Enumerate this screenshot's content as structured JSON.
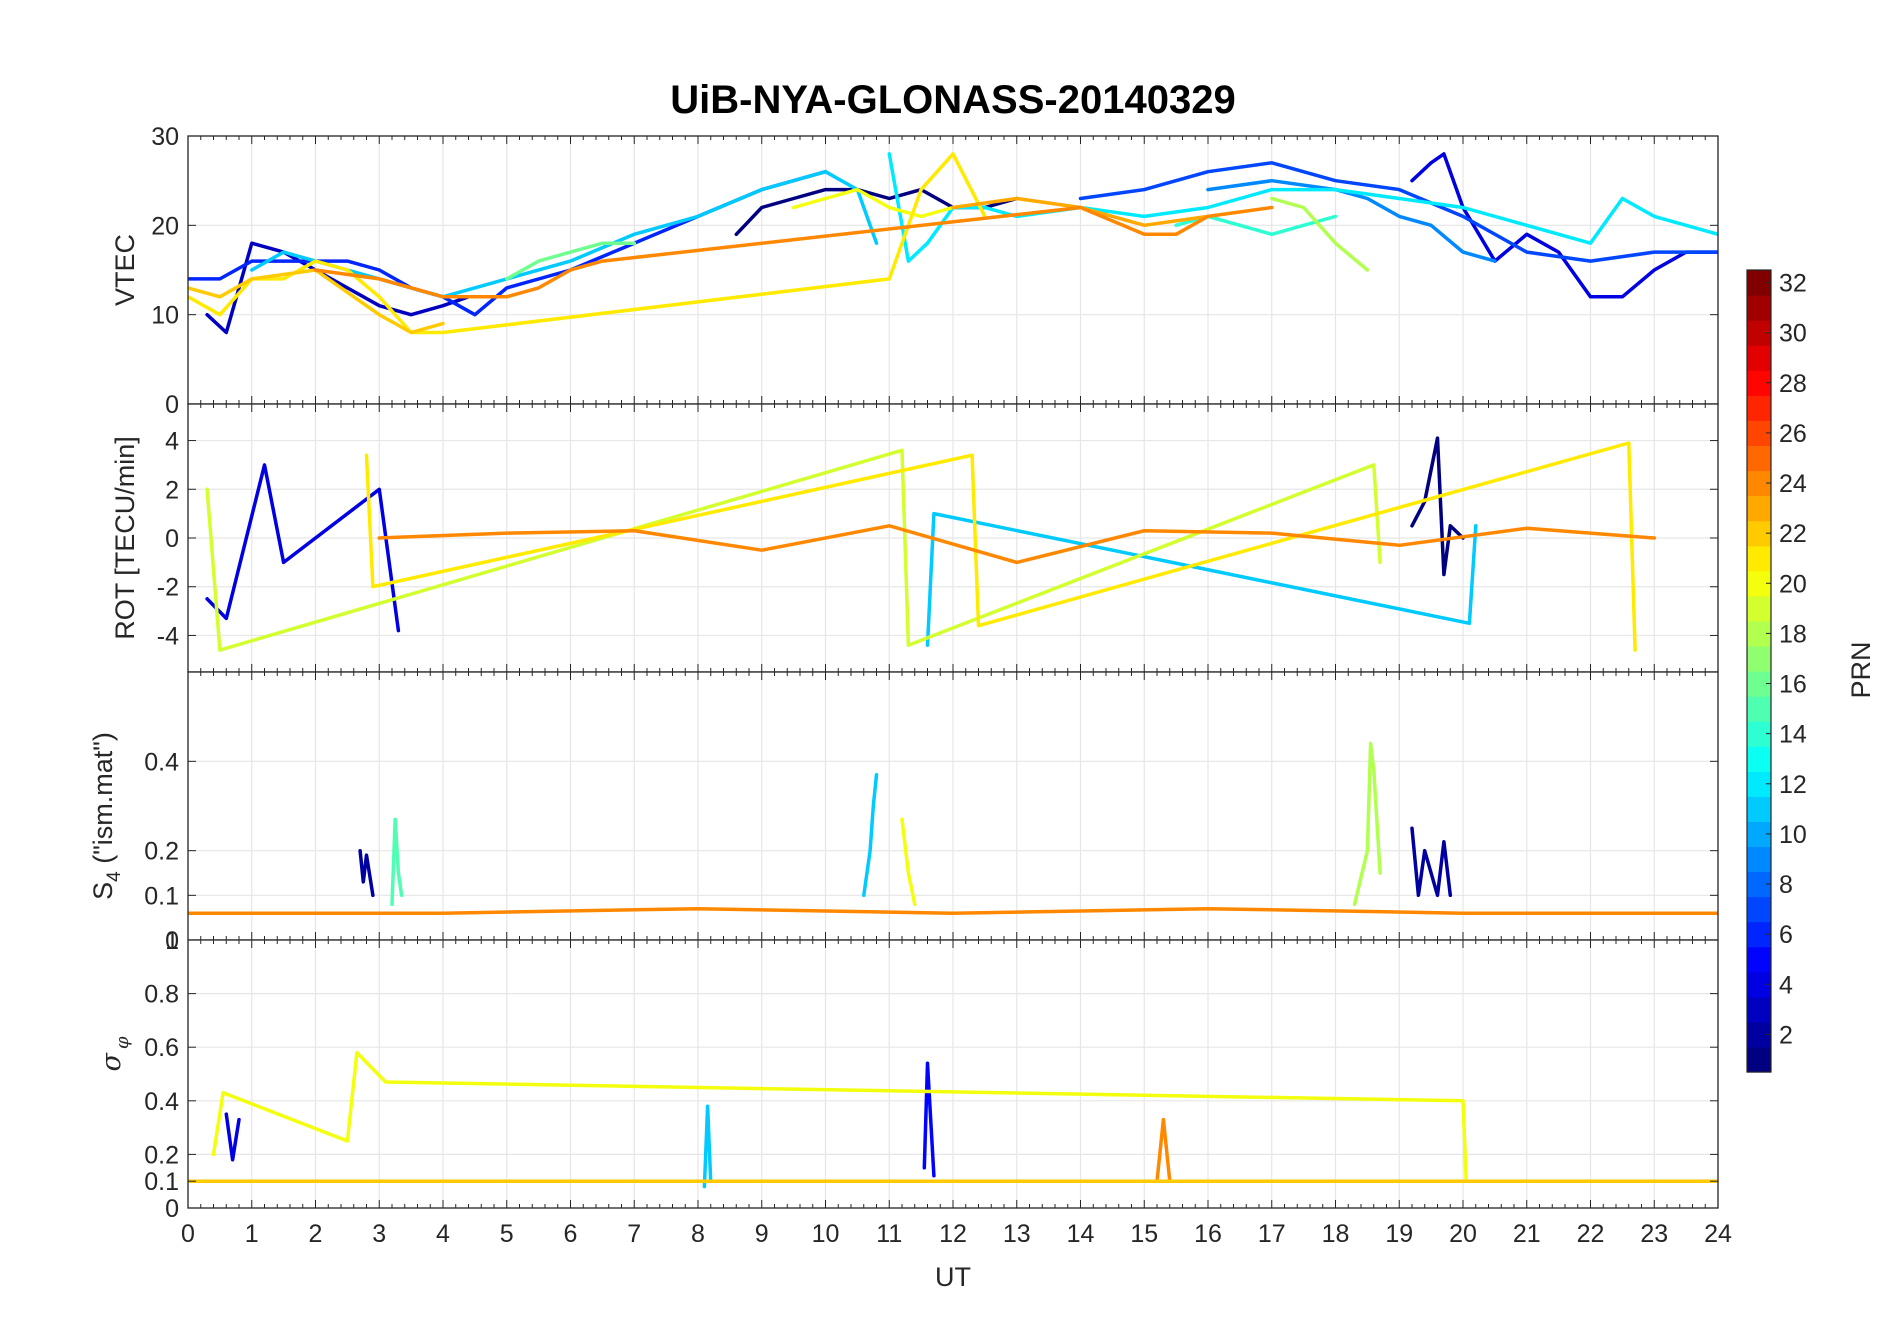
{
  "chart_data": {
    "type": "line",
    "title": "UiB-NYA-GLONASS-20140329",
    "xlabel": "UT",
    "xlim": [
      0,
      24
    ],
    "x_ticks": [
      "0",
      "1",
      "2",
      "3",
      "4",
      "5",
      "6",
      "7",
      "8",
      "9",
      "10",
      "11",
      "12",
      "13",
      "14",
      "15",
      "16",
      "17",
      "18",
      "19",
      "20",
      "21",
      "22",
      "23",
      "24"
    ],
    "grid": true,
    "colorbar": {
      "label": "PRN",
      "range": [
        1,
        32
      ],
      "colormap": "jet",
      "ticks": [
        "2",
        "4",
        "6",
        "8",
        "10",
        "12",
        "14",
        "16",
        "18",
        "20",
        "22",
        "24",
        "26",
        "28",
        "30",
        "32"
      ]
    },
    "panels": [
      {
        "id": "vtec",
        "ylabel": "VTEC",
        "ylim": [
          0,
          30
        ],
        "y_ticks": [
          "0",
          "10",
          "20",
          "30"
        ],
        "series": [
          {
            "prn": 1,
            "x": [
              8.6,
              9.0,
              9.5,
              10.0,
              10.5,
              11.0,
              11.5,
              12.0,
              12.5,
              13.0
            ],
            "y": [
              19,
              22,
              23,
              24,
              24,
              23,
              24,
              22,
              22,
              23
            ]
          },
          {
            "prn": 3,
            "x": [
              0.3,
              0.6,
              1.0,
              1.5,
              2.0,
              2.5,
              3.0,
              3.5,
              4.0,
              4.4
            ],
            "y": [
              10,
              8,
              18,
              17,
              15,
              13,
              11,
              10,
              11,
              12
            ]
          },
          {
            "prn": 4,
            "x": [
              19.2,
              19.5,
              19.7,
              20.0,
              20.5,
              21.0,
              21.5,
              22.0,
              22.5,
              23.0,
              23.5,
              24.0
            ],
            "y": [
              25,
              27,
              28,
              22,
              16,
              19,
              17,
              12,
              12,
              15,
              17,
              17
            ]
          },
          {
            "prn": 6,
            "x": [
              0,
              0.5,
              1.0,
              1.5,
              2.0,
              2.5,
              3.0,
              3.5,
              4.0,
              4.5,
              5.0,
              6.0,
              7.0,
              8.0,
              9.0,
              10.0
            ],
            "y": [
              14,
              14,
              16,
              16,
              16,
              16,
              15,
              13,
              12,
              10,
              13,
              15,
              18,
              21,
              24,
              26
            ]
          },
          {
            "prn": 7,
            "x": [
              14.0,
              15.0,
              16.0,
              17.0,
              18.0,
              19.0,
              20.0,
              21.0,
              22.0,
              23.0,
              24.0
            ],
            "y": [
              23,
              24,
              26,
              27,
              25,
              24,
              21,
              17,
              16,
              17,
              17
            ]
          },
          {
            "prn": 9,
            "x": [
              16.0,
              17.0,
              18.0,
              18.5,
              19.0,
              19.5,
              20.0,
              20.5
            ],
            "y": [
              24,
              25,
              24,
              23,
              21,
              20,
              17,
              16
            ]
          },
          {
            "prn": 11,
            "x": [
              1.0,
              1.5,
              2.0,
              2.5,
              3.0,
              3.5,
              4.0,
              5.0,
              6.0,
              7.0,
              8.0,
              9.0,
              10.0,
              10.5,
              10.8
            ],
            "y": [
              15,
              17,
              16,
              15,
              14,
              13,
              12,
              14,
              16,
              19,
              21,
              24,
              26,
              24,
              18
            ]
          },
          {
            "prn": 12,
            "x": [
              11.0,
              11.3,
              11.6,
              12.0,
              12.5,
              13.0,
              14.0,
              15.0,
              16.0,
              17.0,
              18.0,
              19.0,
              20.0,
              21.0,
              22.0,
              22.5,
              23.0,
              23.5,
              24.0
            ],
            "y": [
              28,
              16,
              18,
              22,
              22,
              21,
              22,
              21,
              22,
              24,
              24,
              23,
              22,
              20,
              18,
              23,
              21,
              20,
              19
            ]
          },
          {
            "prn": 14,
            "x": [
              15.5,
              16.0,
              16.5,
              17.0,
              17.5,
              18.0
            ],
            "y": [
              20,
              21,
              20,
              19,
              20,
              21
            ]
          },
          {
            "prn": 16,
            "x": [
              5.0,
              5.5,
              6.0,
              6.5,
              7.0
            ],
            "y": [
              14,
              16,
              17,
              18,
              18
            ]
          },
          {
            "prn": 18,
            "x": [
              17.0,
              17.5,
              18.0,
              18.5
            ],
            "y": [
              23,
              22,
              18,
              15
            ]
          },
          {
            "prn": 20,
            "x": [
              9.5,
              10.0,
              10.5,
              11.0,
              11.5,
              12.0
            ],
            "y": [
              22,
              23,
              24,
              22,
              21,
              22
            ]
          },
          {
            "prn": 21,
            "x": [
              0,
              0.5,
              1.0,
              1.5,
              2.0,
              2.5,
              3.0,
              3.5,
              4.0,
              11.0,
              11.5,
              12.0,
              12.5
            ],
            "y": [
              12,
              10,
              14,
              14,
              16,
              15,
              12,
              8,
              8,
              14,
              24,
              28,
              21
            ]
          },
          {
            "prn": 22,
            "x": [
              0,
              0.5,
              1.0,
              2.0,
              3.0,
              3.5,
              4.0
            ],
            "y": [
              13,
              12,
              14,
              15,
              10,
              8,
              9
            ]
          },
          {
            "prn": 23,
            "x": [
              12.0,
              13.0,
              14.0,
              15.0,
              16.0
            ],
            "y": [
              22,
              23,
              22,
              20,
              21
            ]
          },
          {
            "prn": 24,
            "x": [
              2.0,
              3.0,
              4.0,
              4.5,
              5.0,
              5.5,
              6.0,
              6.5,
              14.0,
              15.0,
              15.5,
              16.0,
              17.0
            ],
            "y": [
              15,
              14,
              12,
              12,
              12,
              13,
              15,
              16,
              22,
              19,
              19,
              21,
              22
            ]
          }
        ]
      },
      {
        "id": "rot",
        "ylabel": "ROT [TECU/min]",
        "ylim": [
          -5.5,
          5.5
        ],
        "y_ticks": [
          "-4",
          "-2",
          "0",
          "2",
          "4"
        ],
        "series": [
          {
            "prn": 1,
            "x": [
              19.2,
              19.4,
              19.6,
              19.7,
              19.8,
              20.0
            ],
            "y": [
              0.5,
              1.5,
              4.1,
              -1.5,
              0.5,
              0
            ]
          },
          {
            "prn": 4,
            "x": [
              0.3,
              0.6,
              1.2,
              1.5,
              3.0,
              3.3
            ],
            "y": [
              -2.5,
              -3.3,
              3.0,
              -1.0,
              2.0,
              -3.8
            ]
          },
          {
            "prn": 11,
            "x": [
              11.6,
              11.7,
              20.1,
              20.2
            ],
            "y": [
              -4.4,
              1.0,
              -3.5,
              0.5
            ]
          },
          {
            "prn": 19,
            "x": [
              0.3,
              0.5,
              11.2,
              11.3,
              18.6,
              18.7
            ],
            "y": [
              2.0,
              -4.6,
              3.6,
              -4.4,
              3.0,
              -1.0
            ]
          },
          {
            "prn": 21,
            "x": [
              2.8,
              2.9,
              12.3,
              12.4,
              22.6,
              22.7
            ],
            "y": [
              3.4,
              -2.0,
              3.4,
              -3.6,
              3.9,
              -4.6
            ]
          },
          {
            "prn": 24,
            "x": [
              3.0,
              5.0,
              7.0,
              9.0,
              11.0,
              13.0,
              15.0,
              17.0,
              19.0,
              21.0,
              23.0
            ],
            "y": [
              0,
              0.2,
              0.3,
              -0.5,
              0.5,
              -1.0,
              0.3,
              0.2,
              -0.3,
              0.4,
              0
            ]
          }
        ]
      },
      {
        "id": "s4",
        "ylabel": "S4 (\"ism.mat\")",
        "ylabel_base": "S",
        "ylabel_sub": "4",
        "ylabel_rest": " (\"ism.mat\")",
        "ylim": [
          0,
          0.6
        ],
        "y_ticks": [
          "0",
          "0.1",
          "0.2",
          "0.4"
        ],
        "series": [
          {
            "prn": 2,
            "x": [
              2.7,
              2.75,
              2.8,
              2.9
            ],
            "y": [
              0.2,
              0.13,
              0.19,
              0.1
            ]
          },
          {
            "prn": 2,
            "x": [
              19.2,
              19.3,
              19.4,
              19.6,
              19.7,
              19.8
            ],
            "y": [
              0.25,
              0.1,
              0.2,
              0.1,
              0.22,
              0.1
            ]
          },
          {
            "prn": 11,
            "x": [
              10.6,
              10.7,
              10.75,
              10.8
            ],
            "y": [
              0.1,
              0.2,
              0.3,
              0.37
            ]
          },
          {
            "prn": 15,
            "x": [
              3.2,
              3.25,
              3.3,
              3.35
            ],
            "y": [
              0.08,
              0.27,
              0.15,
              0.1
            ]
          },
          {
            "prn": 18,
            "x": [
              18.3,
              18.5,
              18.55,
              18.6,
              18.7
            ],
            "y": [
              0.08,
              0.2,
              0.44,
              0.38,
              0.15
            ]
          },
          {
            "prn": 20,
            "x": [
              11.2,
              11.3,
              11.4
            ],
            "y": [
              0.27,
              0.15,
              0.08
            ]
          },
          {
            "prn": 24,
            "x": [
              0,
              4,
              8,
              12,
              16,
              20,
              24
            ],
            "y": [
              0.06,
              0.06,
              0.07,
              0.06,
              0.07,
              0.06,
              0.06
            ]
          }
        ]
      },
      {
        "id": "sigma_phi",
        "ylabel": "σ_φ",
        "ylabel_base": "σ",
        "ylabel_sub": "φ",
        "ylim": [
          0,
          1
        ],
        "y_ticks": [
          "0",
          "0.1",
          "0.2",
          "0.4",
          "0.6",
          "0.8",
          "1"
        ],
        "series": [
          {
            "prn": 4,
            "x": [
              0.6,
              0.7,
              0.8
            ],
            "y": [
              0.35,
              0.18,
              0.33
            ]
          },
          {
            "prn": 5,
            "x": [
              11.55,
              11.6,
              11.7
            ],
            "y": [
              0.15,
              0.54,
              0.12
            ]
          },
          {
            "prn": 11,
            "x": [
              8.1,
              8.15,
              8.2
            ],
            "y": [
              0.08,
              0.38,
              0.1
            ]
          },
          {
            "prn": 20,
            "x": [
              0.4,
              0.55,
              2.5,
              2.65,
              3.1,
              20.0,
              20.05
            ],
            "y": [
              0.2,
              0.43,
              0.25,
              0.58,
              0.47,
              0.4,
              0.1
            ]
          },
          {
            "prn": 24,
            "x": [
              15.2,
              15.3,
              15.4
            ],
            "y": [
              0.1,
              0.33,
              0.1
            ]
          },
          {
            "prn": 22,
            "x": [
              0,
              4,
              8,
              12,
              16,
              20,
              24
            ],
            "y": [
              0.1,
              0.1,
              0.1,
              0.1,
              0.1,
              0.1,
              0.1
            ]
          }
        ]
      }
    ]
  }
}
